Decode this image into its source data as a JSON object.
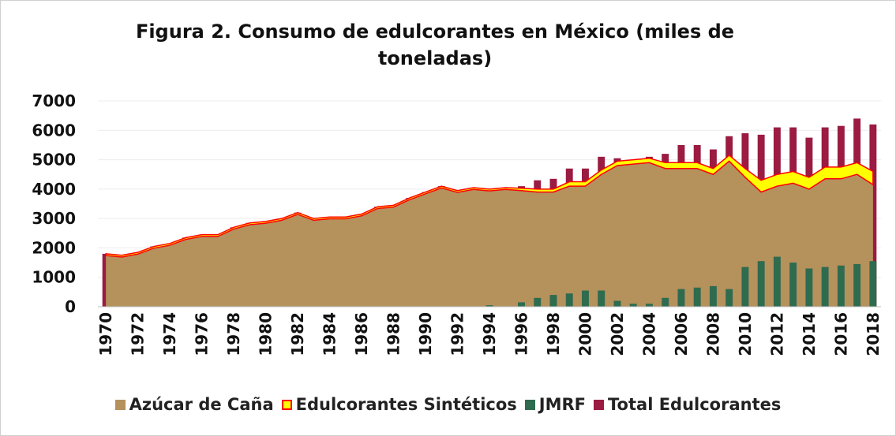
{
  "chart_data": {
    "type": "combo",
    "title": "Figura 2. Consumo de edulcorantes en México (miles de toneladas)",
    "categories": [
      "1970",
      null,
      "1972",
      null,
      "1974",
      null,
      "1976",
      null,
      "1978",
      null,
      "1980",
      null,
      "1982",
      null,
      "1984",
      null,
      "1986",
      null,
      "1988",
      null,
      "1990",
      null,
      "1992",
      null,
      "1994",
      null,
      "1996",
      null,
      "1998",
      null,
      "2000",
      null,
      "2002",
      null,
      "2004",
      null,
      "2006",
      null,
      "2008",
      null,
      "2010",
      null,
      "2012",
      null,
      "2014",
      null,
      "2016",
      null,
      "2018"
    ],
    "ylim": [
      0,
      7000
    ],
    "yticks": [
      0,
      1000,
      2000,
      3000,
      4000,
      5000,
      6000,
      7000
    ],
    "grid": true,
    "series": [
      {
        "name": "Azúcar de Caña",
        "type": "area",
        "color": "#b5915c",
        "values": [
          1740,
          1690,
          1790,
          1990,
          2090,
          2290,
          2390,
          2390,
          2640,
          2790,
          2840,
          2940,
          3140,
          2940,
          2990,
          2990,
          3090,
          3340,
          3390,
          3640,
          3840,
          4040,
          3890,
          3990,
          3940,
          3990,
          3950,
          3900,
          3900,
          4100,
          4100,
          4500,
          4800,
          4850,
          4900,
          4700,
          4700,
          4700,
          4500,
          4950,
          4400,
          3900,
          4100,
          4200,
          4000,
          4350,
          4350,
          4500,
          4150
        ]
      },
      {
        "name": "Edulcorantes Sintéticos",
        "type": "area",
        "stacked": true,
        "color": "#ffff00",
        "edge_color": "#ff0000",
        "values": [
          60,
          60,
          60,
          60,
          60,
          60,
          60,
          60,
          60,
          60,
          60,
          60,
          60,
          60,
          60,
          60,
          60,
          60,
          60,
          60,
          60,
          60,
          60,
          60,
          60,
          60,
          80,
          100,
          100,
          150,
          150,
          150,
          150,
          150,
          150,
          200,
          200,
          200,
          200,
          200,
          300,
          400,
          400,
          400,
          400,
          400,
          400,
          400,
          450
        ]
      },
      {
        "name": "JMRF",
        "type": "bar",
        "color": "#2e6b4f",
        "values": [
          0,
          0,
          0,
          0,
          0,
          0,
          0,
          0,
          0,
          0,
          0,
          0,
          0,
          0,
          0,
          0,
          0,
          0,
          0,
          0,
          0,
          0,
          0,
          0,
          50,
          0,
          150,
          300,
          400,
          450,
          550,
          550,
          200,
          100,
          100,
          300,
          600,
          650,
          700,
          600,
          1350,
          1550,
          1700,
          1500,
          1300,
          1350,
          1400,
          1450,
          1550
        ]
      },
      {
        "name": "Total Edulcorantes",
        "type": "bar",
        "color": "#9b1b42",
        "values": [
          1800,
          1750,
          1850,
          2050,
          2150,
          2350,
          2450,
          2450,
          2700,
          2850,
          2900,
          3000,
          3200,
          3000,
          3050,
          3050,
          3150,
          3400,
          3450,
          3700,
          3900,
          4100,
          3950,
          4050,
          4000,
          4050,
          4100,
          4300,
          4350,
          4700,
          4700,
          5100,
          5050,
          5000,
          5100,
          5200,
          5500,
          5500,
          5350,
          5800,
          5900,
          5850,
          6100,
          6100,
          5750,
          6100,
          6150,
          6400,
          6200
        ]
      }
    ]
  }
}
